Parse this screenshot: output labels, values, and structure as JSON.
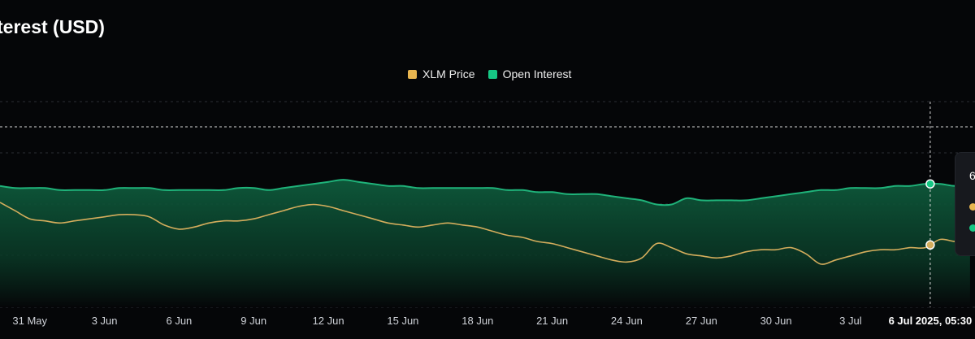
{
  "title": "terest (USD)",
  "legend": [
    {
      "label": "XLM Price",
      "color": "#e8b54f"
    },
    {
      "label": "Open Interest",
      "color": "#16c784"
    }
  ],
  "colors": {
    "price": "#d4ad5c",
    "oi_line": "#1fb37a",
    "oi_fill_top": "#0e5b3c",
    "grid": "#2a2d33",
    "background": "#050608"
  },
  "crosshair": {
    "label": "6 Jul 2025, 05:30",
    "x_day": 36.2
  },
  "tooltip": {
    "partial_text": "6"
  },
  "chart_data": {
    "type": "line",
    "title": "terest (USD)",
    "x_axis": {
      "ticks": [
        "31 May",
        "3 Jun",
        "6 Jun",
        "9 Jun",
        "12 Jun",
        "15 Jun",
        "18 Jun",
        "21 Jun",
        "24 Jun",
        "27 Jun",
        "30 Jun",
        "3 Jul"
      ],
      "tick_days": [
        0,
        3,
        6,
        9,
        12,
        15,
        18,
        21,
        24,
        27,
        30,
        33
      ],
      "domain_days": [
        -1.2,
        38.0
      ]
    },
    "grid": true,
    "legend_position": "top-center",
    "series": [
      {
        "name": "Open Interest",
        "type": "area",
        "scale": [
          0,
          100
        ],
        "x": [
          -1.2,
          -0.6,
          0.0,
          0.6,
          1.2,
          1.8,
          2.4,
          3.0,
          3.6,
          4.2,
          4.8,
          5.4,
          6.0,
          6.6,
          7.2,
          7.8,
          8.4,
          9.0,
          9.6,
          10.2,
          10.8,
          11.4,
          12.0,
          12.6,
          13.2,
          13.8,
          14.4,
          15.0,
          15.6,
          16.2,
          16.8,
          17.4,
          18.0,
          18.6,
          19.2,
          19.8,
          20.4,
          21.0,
          21.6,
          22.2,
          22.8,
          23.4,
          24.0,
          24.6,
          25.2,
          25.8,
          26.4,
          27.0,
          27.6,
          28.2,
          28.8,
          29.4,
          30.0,
          30.6,
          31.2,
          31.8,
          32.4,
          33.0,
          33.6,
          34.2,
          34.8,
          35.4,
          36.0,
          36.6,
          37.2,
          37.8
        ],
        "values": [
          59,
          58,
          58,
          58,
          57,
          57,
          57,
          57,
          58,
          58,
          58,
          57,
          57,
          57,
          57,
          57,
          58,
          58,
          57,
          58,
          59,
          60,
          61,
          62,
          61,
          60,
          59,
          59,
          58,
          58,
          58,
          58,
          58,
          58,
          57,
          57,
          56,
          56,
          55,
          55,
          55,
          54,
          53,
          52,
          50,
          50,
          53,
          52,
          52,
          52,
          52,
          53,
          54,
          55,
          56,
          57,
          57,
          58,
          58,
          58,
          59,
          59,
          60,
          60,
          59,
          60
        ]
      },
      {
        "name": "XLM Price",
        "type": "line",
        "scale": [
          0,
          100
        ],
        "x": [
          -1.2,
          -0.6,
          0.0,
          0.6,
          1.2,
          1.8,
          2.4,
          3.0,
          3.6,
          4.2,
          4.8,
          5.4,
          6.0,
          6.6,
          7.2,
          7.8,
          8.4,
          9.0,
          9.6,
          10.2,
          10.8,
          11.4,
          12.0,
          12.6,
          13.2,
          13.8,
          14.4,
          15.0,
          15.6,
          16.2,
          16.8,
          17.4,
          18.0,
          18.6,
          19.2,
          19.8,
          20.4,
          21.0,
          21.6,
          22.2,
          22.8,
          23.4,
          24.0,
          24.6,
          25.2,
          25.8,
          26.4,
          27.0,
          27.6,
          28.2,
          28.8,
          29.4,
          30.0,
          30.6,
          31.2,
          31.8,
          32.4,
          33.0,
          33.6,
          34.2,
          34.8,
          35.4,
          36.0,
          36.6,
          37.2,
          37.8
        ],
        "values": [
          51,
          47,
          43,
          42,
          41,
          42,
          43,
          44,
          45,
          45,
          44,
          40,
          38,
          39,
          41,
          42,
          42,
          43,
          45,
          47,
          49,
          50,
          49,
          47,
          45,
          43,
          41,
          40,
          39,
          40,
          41,
          40,
          39,
          37,
          35,
          34,
          32,
          31,
          29,
          27,
          25,
          23,
          22,
          24,
          31,
          29,
          26,
          25,
          24,
          25,
          27,
          28,
          28,
          29,
          26,
          21,
          23,
          25,
          27,
          28,
          28,
          29,
          29,
          33,
          32,
          33
        ]
      }
    ]
  }
}
